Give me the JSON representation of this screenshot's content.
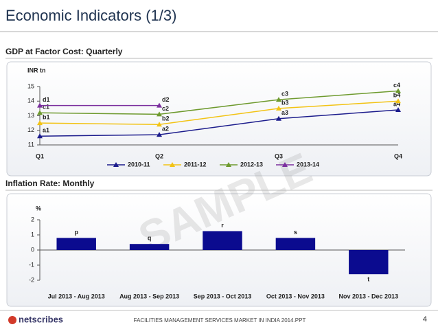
{
  "title": "Economic Indicators (1/3)",
  "watermark": "SAMPLE",
  "footer": {
    "logo": "netscribes",
    "text": "FACILITIES MANAGEMENT SERVICES MARKET IN INDIA 2014.PPT",
    "page": "4"
  },
  "chart_data": [
    {
      "type": "line",
      "title": "GDP at Factor Cost: Quarterly",
      "y_label": "INR tn",
      "categories": [
        "Q1",
        "Q2",
        "Q3",
        "Q4"
      ],
      "ylim": [
        11,
        15
      ],
      "yticks": [
        11,
        12,
        13,
        14,
        15
      ],
      "legend": "bottom",
      "series": [
        {
          "name": "2010-11",
          "color": "#1c1c8c",
          "values": [
            11.6,
            11.7,
            12.8,
            13.4
          ],
          "value_labels": [
            "a1",
            "a2",
            "a3",
            "a4"
          ]
        },
        {
          "name": "2011-12",
          "color": "#f2c314",
          "values": [
            12.5,
            12.4,
            13.5,
            14.0
          ],
          "value_labels": [
            "b1",
            "b2",
            "b3",
            "b4"
          ]
        },
        {
          "name": "2012-13",
          "color": "#6e9a2e",
          "values": [
            13.2,
            13.1,
            14.1,
            14.7
          ],
          "value_labels": [
            "c1",
            "c2",
            "c3",
            "c4"
          ]
        },
        {
          "name": "2013-14",
          "color": "#7b2f9e",
          "values": [
            13.7,
            13.7,
            null,
            null
          ],
          "value_labels": [
            "d1",
            "d2",
            null,
            null
          ]
        }
      ]
    },
    {
      "type": "bar",
      "title": "Inflation Rate: Monthly",
      "y_label": "%",
      "categories": [
        "Jul 2013 - Aug 2013",
        "Aug 2013 - Sep 2013",
        "Sep 2013 - Oct 2013",
        "Oct 2013 - Nov 2013",
        "Nov 2013 -  Dec 2013"
      ],
      "values": [
        0.8,
        0.4,
        1.25,
        0.8,
        -1.6
      ],
      "value_labels": [
        "p",
        "q",
        "r",
        "s",
        "t"
      ],
      "color": "#0b0b8f",
      "ylim": [
        -2,
        2
      ],
      "yticks": [
        -2,
        -1,
        0,
        1,
        2
      ]
    }
  ]
}
